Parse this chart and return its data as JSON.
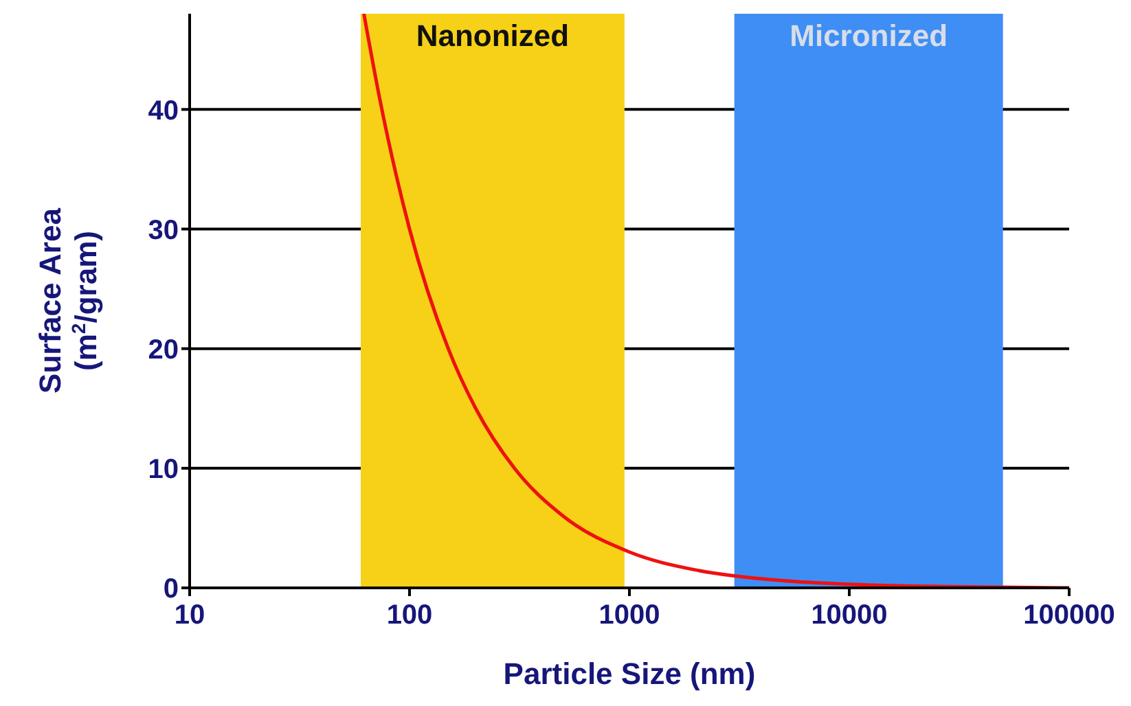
{
  "chart_data": {
    "type": "line",
    "xlabel": "Particle Size (nm)",
    "ylabel": "Surface Area (m$^{2}$/gram)",
    "log": "x",
    "x": [
      62,
      73,
      100,
      150,
      200,
      300,
      500,
      1000,
      2000,
      3000,
      5000,
      10000,
      30000,
      100000
    ],
    "series": [
      {
        "color": "#ee1111",
        "values": [
          48,
          41,
          30,
          20,
          15,
          10,
          6,
          3,
          1.5,
          1,
          0.6,
          0.3,
          0.1,
          0
        ]
      }
    ],
    "xlim": [
      10,
      100000
    ],
    "xticks": [
      10,
      100,
      1000,
      10000,
      100000
    ],
    "ylim": [
      0,
      48
    ],
    "yticks": [
      0,
      10,
      20,
      30,
      40
    ],
    "grid": "y",
    "marker": "none",
    "line_style": "solid",
    "legend": false,
    "bands": [
      {
        "axis": "x",
        "from": 60,
        "to": 950,
        "label": "Nanonized",
        "color": "#f7d117"
      },
      {
        "axis": "x",
        "from": 3000,
        "to": 50000,
        "label": "Micronized",
        "color": "#3f8ef5"
      }
    ]
  }
}
